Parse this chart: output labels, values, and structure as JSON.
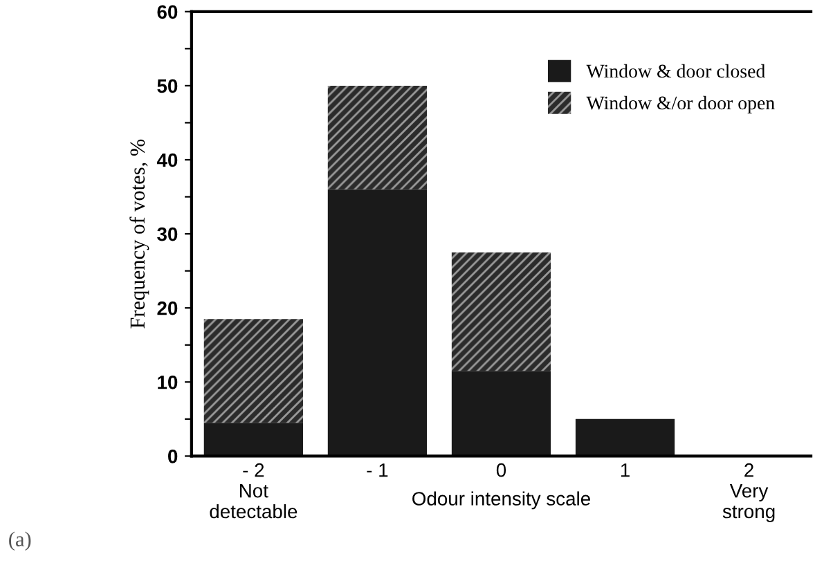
{
  "chart_data": {
    "type": "bar",
    "stacked": true,
    "categories": [
      "- 2\nNot\ndetectable",
      "- 1",
      "0",
      "1",
      "2\nVery\nstrong"
    ],
    "series": [
      {
        "name": "Window & door closed",
        "color": "#1a1a1a",
        "values": [
          4.5,
          36,
          11.5,
          5,
          0
        ]
      },
      {
        "name": "Window &/or door open",
        "color": "#2b2b2b",
        "values": [
          14,
          14,
          16,
          0,
          0
        ]
      }
    ],
    "xlabel": "Odour intensity scale",
    "ylabel": "Frequency of votes, %",
    "ylim": [
      0,
      60
    ],
    "yticks": [
      0,
      {
        "value": 5,
        "label": null
      },
      10,
      {
        "value": 15,
        "label": null
      },
      20,
      {
        "value": 25,
        "label": null
      },
      30,
      {
        "value": 35,
        "label": null
      },
      40,
      {
        "value": 45,
        "label": null
      },
      50,
      {
        "value": 55,
        "label": null
      },
      60
    ],
    "legend": "top right",
    "grid": false,
    "annotations": [
      "(a)"
    ]
  }
}
